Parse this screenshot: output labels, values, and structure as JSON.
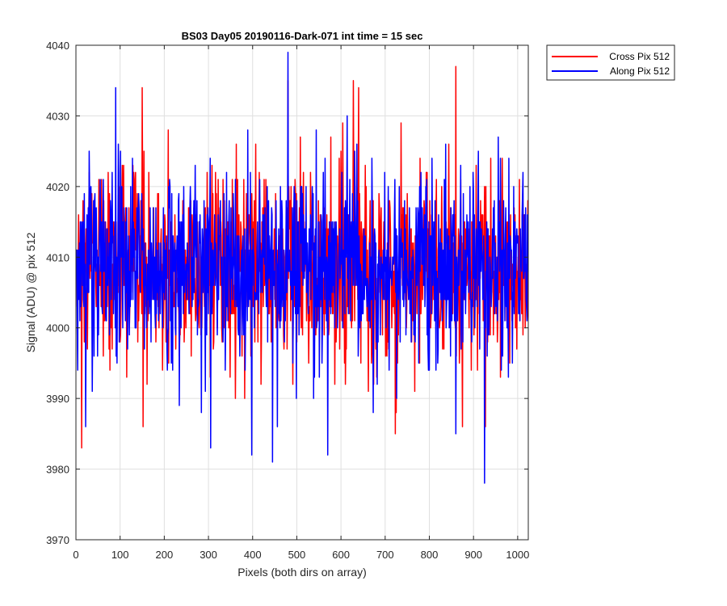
{
  "chart_data": {
    "type": "line",
    "title": "BS03 Day05 20190116-Dark-071 int time = 15 sec",
    "xlabel": "Pixels (both dirs on array)",
    "ylabel": "Signal (ADU) @ pix 512",
    "xlim": [
      0,
      1024
    ],
    "ylim": [
      3970,
      4040
    ],
    "xticks": [
      "0",
      "100",
      "200",
      "300",
      "400",
      "500",
      "600",
      "700",
      "800",
      "900",
      "1000"
    ],
    "yticks": [
      "3970",
      "3980",
      "3990",
      "4000",
      "4010",
      "4020",
      "4030",
      "4040"
    ],
    "grid": true,
    "legend_position": "outside-top-right",
    "series": [
      {
        "name": "Cross Pix 512",
        "color": "#ff0000",
        "x_start": 1,
        "x_step": 1,
        "point_count": 1024,
        "mean": 4008,
        "std": 7,
        "min": 3983,
        "max": 4037,
        "highlights": [
          [
            13,
            3983
          ],
          [
            150,
            4034
          ],
          [
            152,
            3986
          ],
          [
            480,
            4035
          ],
          [
            628,
            4035
          ],
          [
            640,
            4034
          ],
          [
            723,
            3985
          ],
          [
            860,
            4037
          ],
          [
            875,
            3986
          ]
        ]
      },
      {
        "name": "Along Pix 512",
        "color": "#0000ff",
        "x_start": 1,
        "x_step": 1,
        "point_count": 1024,
        "mean": 4009,
        "std": 7,
        "min": 3978,
        "max": 4039,
        "highlights": [
          [
            90,
            4034
          ],
          [
            305,
            3983
          ],
          [
            398,
            3982
          ],
          [
            445,
            3981
          ],
          [
            480,
            4039
          ],
          [
            570,
            3982
          ],
          [
            860,
            3985
          ],
          [
            925,
            3978
          ]
        ]
      }
    ]
  }
}
